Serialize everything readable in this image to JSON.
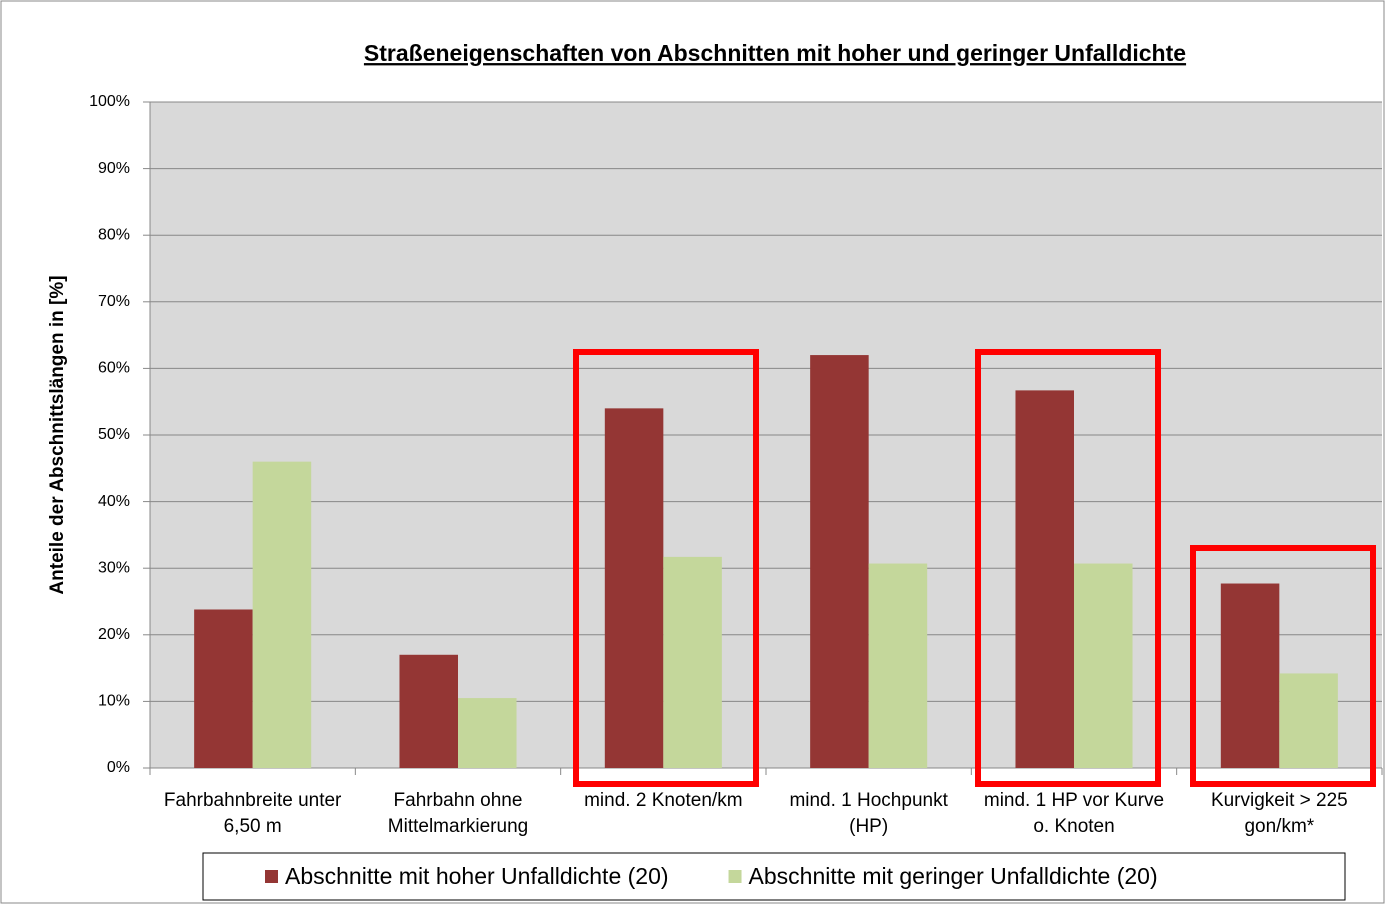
{
  "chart_data": {
    "type": "bar",
    "title": "Straßeneigenschaften von Abschnitten mit hoher und geringer Unfalldichte",
    "y_label": "Anteile der Abschnittslängen in [%]",
    "categories": [
      "Fahrbahnbreite unter 6,50 m",
      "Fahrbahn ohne Mittelmarkierung",
      "mind. 2 Knoten/km",
      "mind. 1 Hochpunkt (HP)",
      "mind. 1 HP vor Kurve o. Knoten",
      "Kurvigkeit > 225 gon/km*"
    ],
    "series": [
      {
        "name": "Abschnitte mit hoher Unfalldichte (20)",
        "color": "#943634",
        "values": [
          23.8,
          17,
          54,
          62,
          56.7,
          27.7
        ]
      },
      {
        "name": "Abschnitte mit geringer Unfalldichte (20)",
        "color": "#c4d79b",
        "values": [
          46,
          10.5,
          31.7,
          30.7,
          30.7,
          14.2
        ]
      }
    ],
    "ylim": [
      0,
      100
    ],
    "yticks": [
      {
        "value": 0,
        "label": "0%"
      },
      {
        "value": 10,
        "label": "10%"
      },
      {
        "value": 20,
        "label": "20%"
      },
      {
        "value": 30,
        "label": "30%"
      },
      {
        "value": 40,
        "label": "40%"
      },
      {
        "value": 50,
        "label": "50%"
      },
      {
        "value": 60,
        "label": "60%"
      },
      {
        "value": 70,
        "label": "70%"
      },
      {
        "value": 80,
        "label": "80%"
      },
      {
        "value": 90,
        "label": "90%"
      },
      {
        "value": 100,
        "label": "100%"
      }
    ],
    "grid": true,
    "legend": "bottom"
  }
}
